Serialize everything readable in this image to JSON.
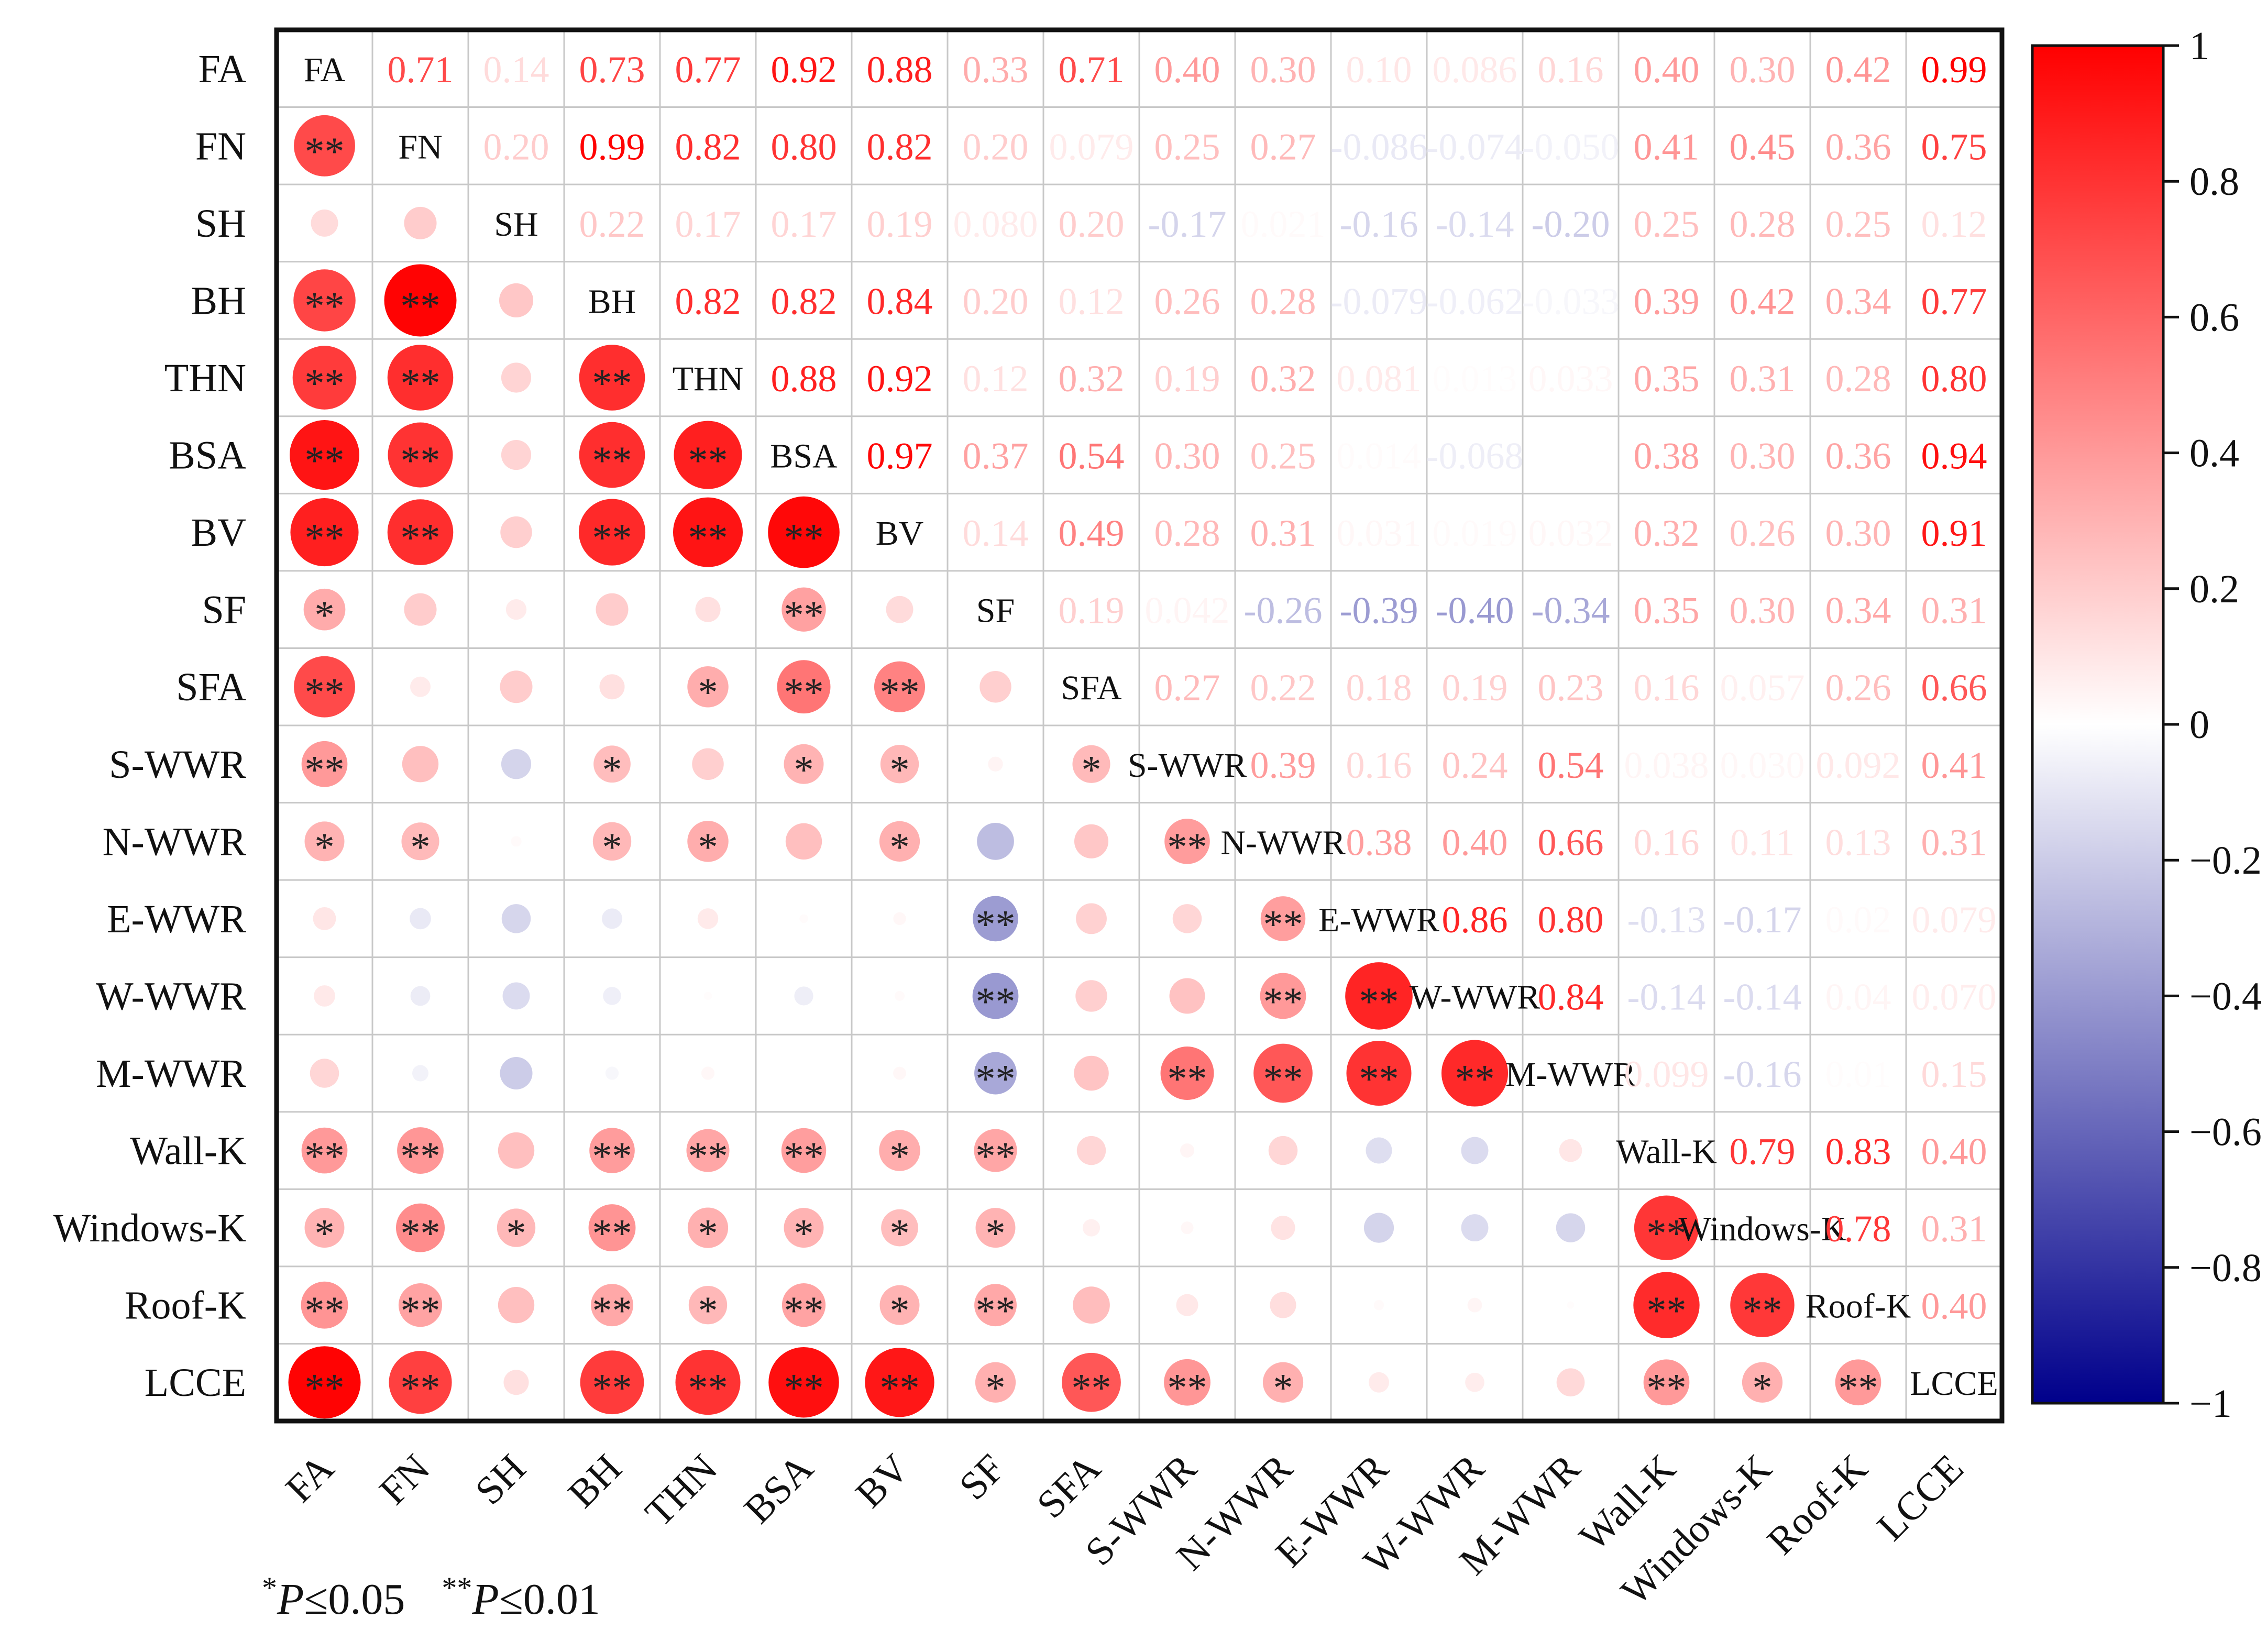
{
  "chart_data": {
    "type": "heatmap",
    "variables": [
      "FA",
      "FN",
      "SH",
      "BH",
      "THN",
      "BSA",
      "BV",
      "SF",
      "SFA",
      "S-WWR",
      "N-WWR",
      "E-WWR",
      "W-WWR",
      "M-WWR",
      "Wall-K",
      "Windows-K",
      "Roof-K",
      "LCCE"
    ],
    "upper_labels": [
      [
        "",
        "0.71",
        "0.14",
        "0.73",
        "0.77",
        "0.92",
        "0.88",
        "0.33",
        "0.71",
        "0.40",
        "0.30",
        "0.10",
        "0.086",
        "0.16",
        "0.40",
        "0.30",
        "0.42",
        "0.99"
      ],
      [
        "",
        "",
        "0.20",
        "0.99",
        "0.82",
        "0.80",
        "0.82",
        "0.20",
        "0.079",
        "0.25",
        "0.27",
        "-0.086",
        "-0.074",
        "-0.050",
        "0.41",
        "0.45",
        "0.36",
        "0.75"
      ],
      [
        "",
        "",
        "",
        "0.22",
        "0.17",
        "0.17",
        "0.19",
        "0.080",
        "0.20",
        "-0.17",
        "0.021",
        "-0.16",
        "-0.14",
        "-0.20",
        "0.25",
        "0.28",
        "0.25",
        "0.12"
      ],
      [
        "",
        "",
        "",
        "",
        "0.82",
        "0.82",
        "0.84",
        "0.20",
        "0.12",
        "0.26",
        "0.28",
        "-0.079",
        "-0.062",
        "-0.033",
        "0.39",
        "0.42",
        "0.34",
        "0.77"
      ],
      [
        "",
        "",
        "",
        "",
        "",
        "0.88",
        "0.92",
        "0.12",
        "0.32",
        "0.19",
        "0.32",
        "0.081",
        "0.013",
        "0.033",
        "0.35",
        "0.31",
        "0.28",
        "0.80"
      ],
      [
        "",
        "",
        "",
        "",
        "",
        "",
        "0.97",
        "0.37",
        "0.54",
        "0.30",
        "0.25",
        "0.014",
        "-0.068",
        "0.001",
        "0.38",
        "0.30",
        "0.36",
        "0.94"
      ],
      [
        "",
        "",
        "",
        "",
        "",
        "",
        "",
        "0.14",
        "0.49",
        "0.28",
        "0.31",
        "0.031",
        "0.019",
        "0.032",
        "0.32",
        "0.26",
        "0.30",
        "0.91"
      ],
      [
        "",
        "",
        "",
        "",
        "",
        "",
        "",
        "",
        "0.19",
        "0.042",
        "-0.26",
        "-0.39",
        "-0.40",
        "-0.34",
        "0.35",
        "0.30",
        "0.34",
        "0.31"
      ],
      [
        "",
        "",
        "",
        "",
        "",
        "",
        "",
        "",
        "",
        "0.27",
        "0.22",
        "0.18",
        "0.19",
        "0.23",
        "0.16",
        "0.057",
        "0.26",
        "0.66"
      ],
      [
        "",
        "",
        "",
        "",
        "",
        "",
        "",
        "",
        "",
        "",
        "0.39",
        "0.16",
        "0.24",
        "0.54",
        "0.038",
        "0.030",
        "0.092",
        "0.41"
      ],
      [
        "",
        "",
        "",
        "",
        "",
        "",
        "",
        "",
        "",
        "",
        "",
        "0.38",
        "0.40",
        "0.66",
        "0.16",
        "0.11",
        "0.13",
        "0.31"
      ],
      [
        "",
        "",
        "",
        "",
        "",
        "",
        "",
        "",
        "",
        "",
        "",
        "",
        "0.86",
        "0.80",
        "-0.13",
        "-0.17",
        "0.02",
        "0.079"
      ],
      [
        "",
        "",
        "",
        "",
        "",
        "",
        "",
        "",
        "",
        "",
        "",
        "",
        "",
        "0.84",
        "-0.14",
        "-0.14",
        "0.04",
        "0.070"
      ],
      [
        "",
        "",
        "",
        "",
        "",
        "",
        "",
        "",
        "",
        "",
        "",
        "",
        "",
        "",
        "0.099",
        "-0.16",
        "0.01",
        "0.15"
      ],
      [
        "",
        "",
        "",
        "",
        "",
        "",
        "",
        "",
        "",
        "",
        "",
        "",
        "",
        "",
        "",
        "0.79",
        "0.83",
        "0.40"
      ],
      [
        "",
        "",
        "",
        "",
        "",
        "",
        "",
        "",
        "",
        "",
        "",
        "",
        "",
        "",
        "",
        "",
        "0.78",
        "0.31"
      ],
      [
        "",
        "",
        "",
        "",
        "",
        "",
        "",
        "",
        "",
        "",
        "",
        "",
        "",
        "",
        "",
        "",
        "",
        "0.40"
      ],
      [
        "",
        "",
        "",
        "",
        "",
        "",
        "",
        "",
        "",
        "",
        "",
        "",
        "",
        "",
        "",
        "",
        "",
        ""
      ]
    ],
    "significance": [
      [
        "",
        "",
        "",
        "",
        "",
        "",
        "",
        "",
        "",
        "",
        "",
        "",
        "",
        "",
        "",
        "",
        "",
        ""
      ],
      [
        "**",
        "",
        "",
        "",
        "",
        "",
        "",
        "",
        "",
        "",
        "",
        "",
        "",
        "",
        "",
        "",
        "",
        ""
      ],
      [
        "",
        "",
        "",
        "",
        "",
        "",
        "",
        "",
        "",
        "",
        "",
        "",
        "",
        "",
        "",
        "",
        "",
        ""
      ],
      [
        "**",
        "**",
        "",
        "",
        "",
        "",
        "",
        "",
        "",
        "",
        "",
        "",
        "",
        "",
        "",
        "",
        "",
        ""
      ],
      [
        "**",
        "**",
        "",
        "**",
        "",
        "",
        "",
        "",
        "",
        "",
        "",
        "",
        "",
        "",
        "",
        "",
        "",
        ""
      ],
      [
        "**",
        "**",
        "",
        "**",
        "**",
        "",
        "",
        "",
        "",
        "",
        "",
        "",
        "",
        "",
        "",
        "",
        "",
        ""
      ],
      [
        "**",
        "**",
        "",
        "**",
        "**",
        "**",
        "",
        "",
        "",
        "",
        "",
        "",
        "",
        "",
        "",
        "",
        "",
        ""
      ],
      [
        "*",
        "",
        "",
        "",
        "",
        "**",
        "",
        "",
        "",
        "",
        "",
        "",
        "",
        "",
        "",
        "",
        "",
        ""
      ],
      [
        "**",
        "",
        "",
        "",
        "*",
        "**",
        "**",
        "",
        "",
        "",
        "",
        "",
        "",
        "",
        "",
        "",
        "",
        ""
      ],
      [
        "**",
        "",
        "",
        "*",
        "",
        "*",
        "*",
        "",
        "*",
        "",
        "",
        "",
        "",
        "",
        "",
        "",
        "",
        ""
      ],
      [
        "*",
        "*",
        "",
        "*",
        "*",
        "",
        "*",
        "",
        "",
        "**",
        "",
        "",
        "",
        "",
        "",
        "",
        "",
        ""
      ],
      [
        "",
        "",
        "",
        "",
        "",
        "",
        "",
        "**",
        "",
        "",
        "**",
        "",
        "",
        "",
        "",
        "",
        "",
        ""
      ],
      [
        "",
        "",
        "",
        "",
        "",
        "",
        "",
        "**",
        "",
        "",
        "**",
        "**",
        "",
        "",
        "",
        "",
        "",
        ""
      ],
      [
        "",
        "",
        "",
        "",
        "",
        "",
        "",
        "**",
        "",
        "**",
        "**",
        "**",
        "**",
        "",
        "",
        "",
        "",
        ""
      ],
      [
        "**",
        "**",
        "",
        "**",
        "**",
        "**",
        "*",
        "**",
        "",
        "",
        "",
        "",
        "",
        "",
        "",
        "",
        "",
        ""
      ],
      [
        "*",
        "**",
        "*",
        "**",
        "*",
        "*",
        "*",
        "*",
        "",
        "",
        "",
        "",
        "",
        "",
        "**",
        "",
        "",
        ""
      ],
      [
        "**",
        "**",
        "",
        "**",
        "*",
        "**",
        "*",
        "**",
        "",
        "",
        "",
        "",
        "",
        "",
        "**",
        "**",
        "",
        ""
      ],
      [
        "**",
        "**",
        "",
        "**",
        "**",
        "**",
        "**",
        "*",
        "**",
        "**",
        "*",
        "",
        "",
        "",
        "**",
        "*",
        "**",
        ""
      ]
    ],
    "value_range": [
      -1,
      1
    ],
    "colorbar_ticks": [
      "1",
      "0.8",
      "0.6",
      "0.4",
      "0.2",
      "0",
      "−0.2",
      "−0.4",
      "−0.6",
      "−0.8",
      "−1"
    ],
    "colorbar_colors": {
      "positive": "#ff0000",
      "zero": "#ffffff",
      "negative": "#00008b"
    },
    "legend": {
      "star1": "*",
      "p1": "P",
      "cond1": "≤0.05",
      "star2": "**",
      "p2": "P",
      "cond2": "≤0.01"
    }
  }
}
